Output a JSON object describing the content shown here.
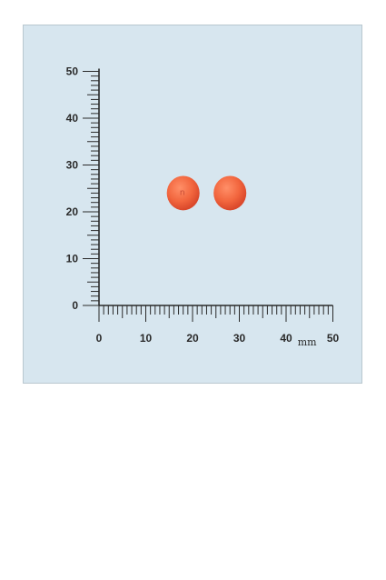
{
  "scale": {
    "unit": "mm",
    "y_axis": {
      "min": 0,
      "max": 50,
      "labels": [
        "0",
        "10",
        "20",
        "30",
        "40",
        "50"
      ],
      "minor_step": 1
    },
    "x_axis": {
      "min": 0,
      "max": 50,
      "labels": [
        "0",
        "10",
        "20",
        "30",
        "40",
        "50"
      ],
      "minor_step": 1
    }
  },
  "tablets": [
    {
      "name": "tablet-left",
      "center_mm": [
        18,
        24
      ],
      "diameter_mm": 7,
      "imprint": "n",
      "color": "#f2663e"
    },
    {
      "name": "tablet-right",
      "center_mm": [
        28,
        24
      ],
      "diameter_mm": 7,
      "imprint": "",
      "color": "#f3673f"
    }
  ],
  "colors": {
    "background": "#d7e6ef",
    "ruler": "#2a2a2a",
    "tablet_highlight": "#ff9a74",
    "tablet_shadow": "#d9472a"
  }
}
